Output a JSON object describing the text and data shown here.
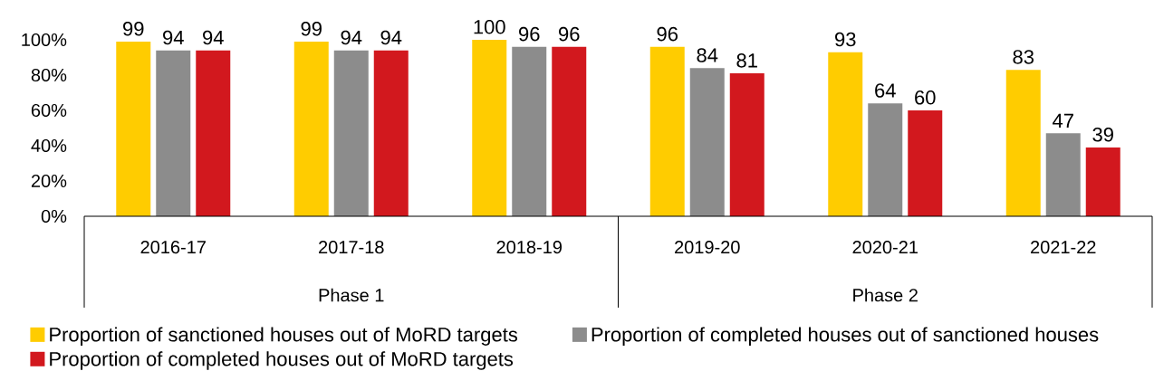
{
  "chart_data": {
    "type": "bar",
    "categories": [
      "2016-17",
      "2017-18",
      "2018-19",
      "2019-20",
      "2020-21",
      "2021-22"
    ],
    "series": [
      {
        "name": "Proportion of sanctioned houses out of MoRD targets",
        "color": "#ffcc00",
        "values": [
          99,
          99,
          100,
          96,
          93,
          83
        ]
      },
      {
        "name": "Proportion of completed houses out of sanctioned houses",
        "color": "#8c8c8c",
        "values": [
          94,
          94,
          96,
          84,
          64,
          47
        ]
      },
      {
        "name": "Proportion of completed houses out of MoRD targets",
        "color": "#d2181e",
        "values": [
          94,
          94,
          96,
          81,
          60,
          39
        ]
      }
    ],
    "ylim": [
      0,
      100
    ],
    "yticks": [
      {
        "value": 0,
        "label": "0%"
      },
      {
        "value": 20,
        "label": "20%"
      },
      {
        "value": 40,
        "label": "40%"
      },
      {
        "value": 60,
        "label": "60%"
      },
      {
        "value": 80,
        "label": "80%"
      },
      {
        "value": 100,
        "label": "100%"
      }
    ],
    "data_labels": true,
    "legend": "bottom",
    "annotations": [
      "Phase 1",
      "Phase 2"
    ]
  }
}
